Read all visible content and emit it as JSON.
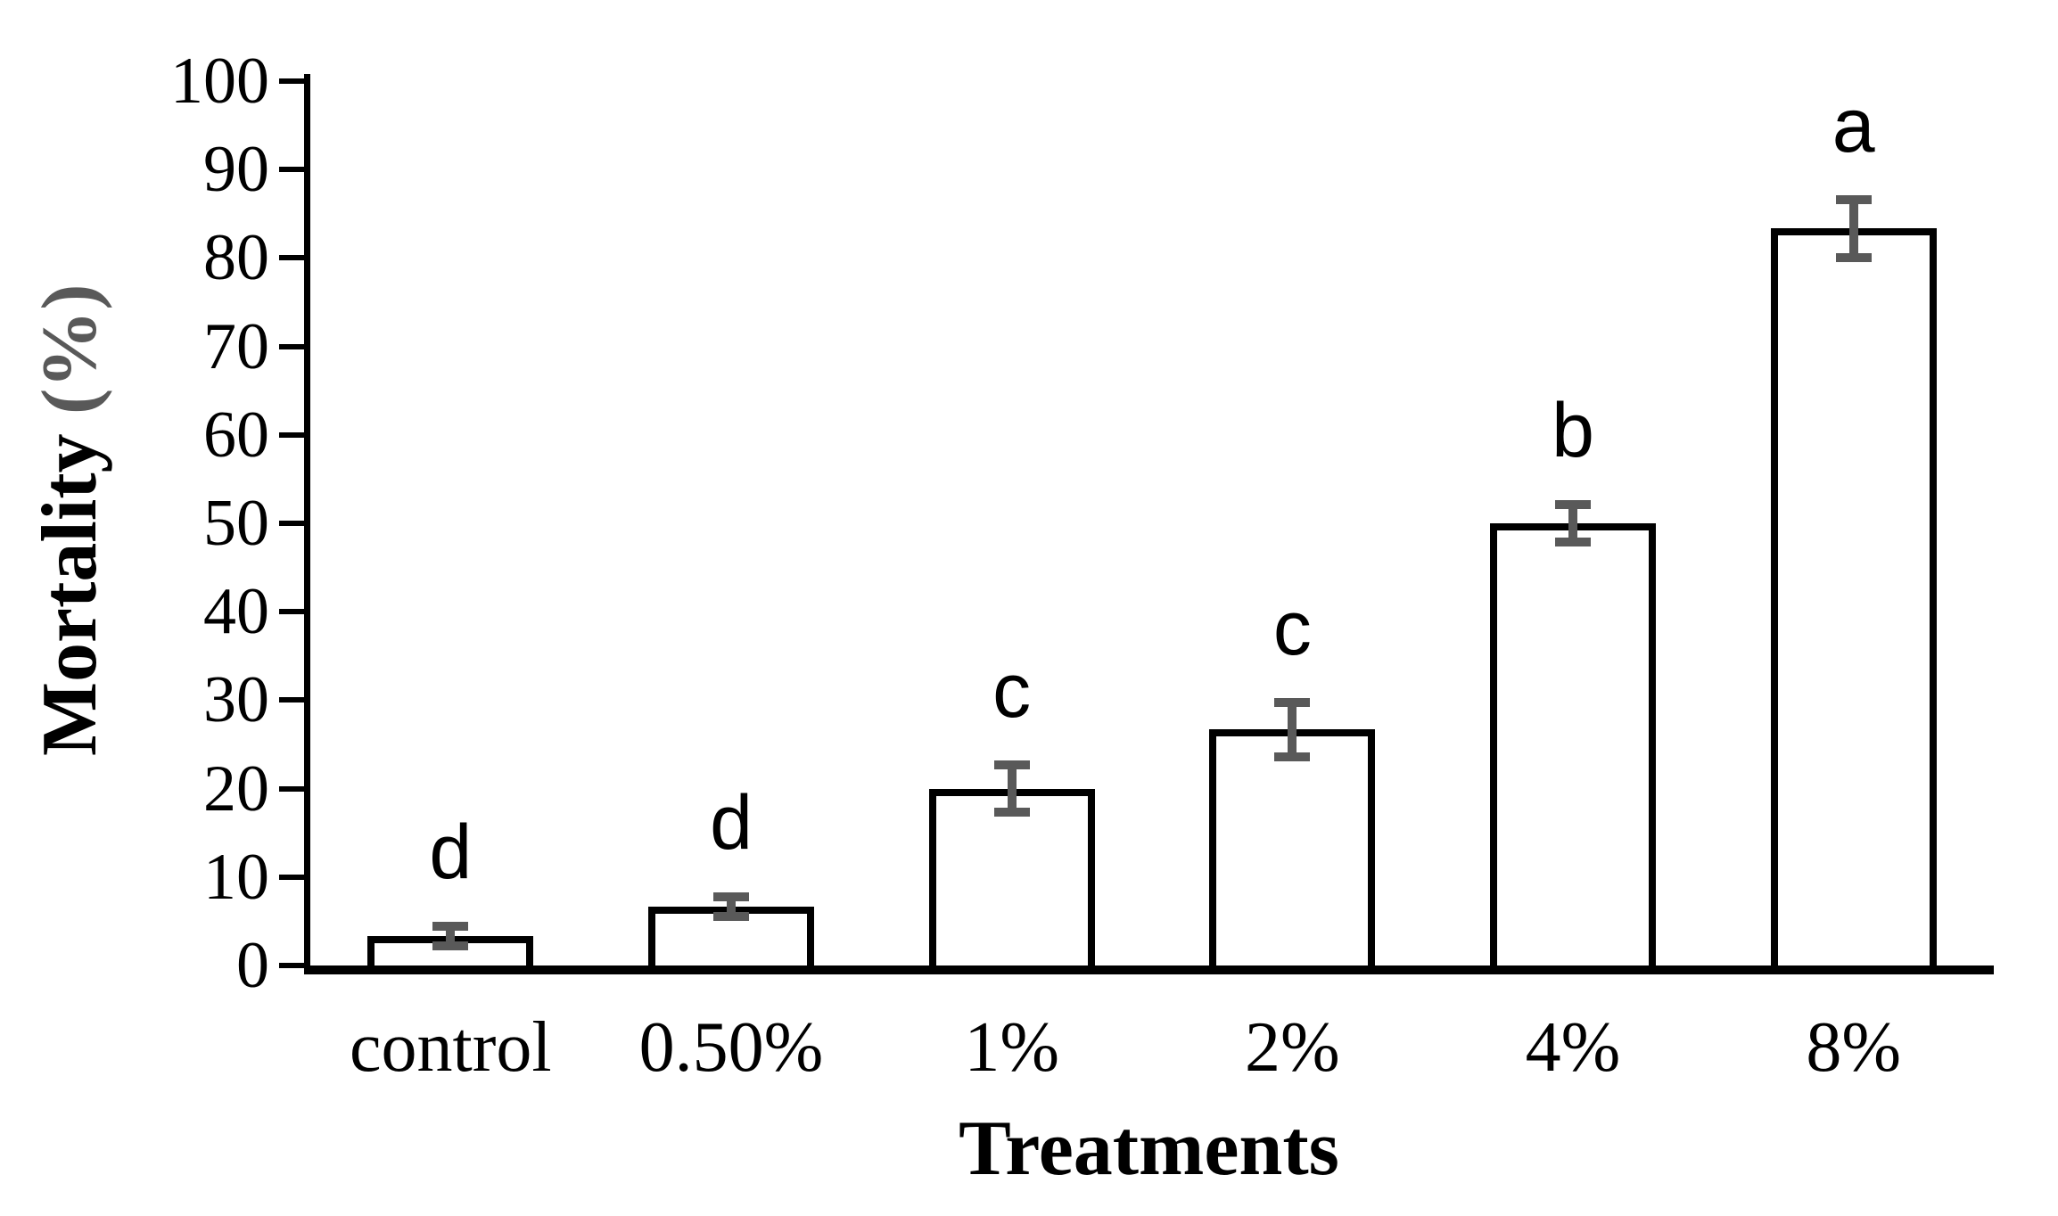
{
  "chart_data": {
    "type": "bar",
    "title": "",
    "xlabel": "Treatments",
    "ylabel": "Mortality",
    "ylabel_suffix": "(%)",
    "categories": [
      "control",
      "0.50%",
      "1%",
      "2%",
      "4%",
      "8%"
    ],
    "values": [
      3.33,
      6.67,
      20,
      26.67,
      50,
      83.33
    ],
    "error_bars": [
      1.1,
      1.1,
      2.7,
      3.1,
      2.1,
      3.3
    ],
    "sig_letters": [
      "d",
      "d",
      "c",
      "c",
      "b",
      "a"
    ],
    "ylim": [
      0,
      100
    ],
    "ytick_step": 10,
    "ytick_labels": [
      "0",
      "10",
      "20",
      "30",
      "40",
      "50",
      "60",
      "70",
      "80",
      "90",
      "100"
    ],
    "grid": false,
    "legend": "none",
    "colors": {
      "axis": "#000000",
      "bar_fill": "#ffffff",
      "bar_border": "#000000",
      "error_bar": "#595959",
      "sig_letter": "#000000",
      "ylabel_suffix": "#595959",
      "text": "#000000"
    }
  }
}
